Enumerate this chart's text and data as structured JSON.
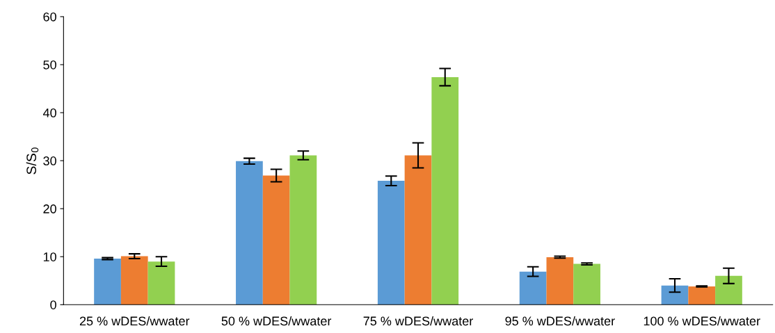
{
  "chart_data": {
    "type": "bar",
    "ylabel": "S/S$_{0}$",
    "categories": [
      "25 % wDES/wwater",
      "50 % wDES/wwater",
      "75 % wDES/wwater",
      "95 % wDES/wwater",
      "100 % wDES/wwater"
    ],
    "series": [
      {
        "color": "#5b9bd5",
        "values": [
          9.6,
          29.9,
          25.8,
          6.9,
          4.0
        ],
        "errors": [
          0.2,
          0.6,
          1.0,
          1.0,
          1.4
        ]
      },
      {
        "color": "#ed7d31",
        "values": [
          10.1,
          26.9,
          31.1,
          9.9,
          3.8
        ],
        "errors": [
          0.5,
          1.3,
          2.6,
          0.2,
          0.1
        ]
      },
      {
        "color": "#92d050",
        "values": [
          9.0,
          31.1,
          47.4,
          8.5,
          6.0
        ],
        "errors": [
          1.0,
          0.9,
          1.8,
          0.2,
          1.6
        ]
      }
    ],
    "ylim": [
      0,
      60
    ],
    "yticks": [
      0,
      10,
      20,
      30,
      40,
      50,
      60
    ],
    "grid": false,
    "legend": false
  }
}
